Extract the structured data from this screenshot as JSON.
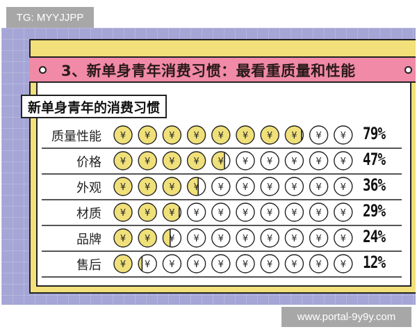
{
  "watermarks": {
    "top": "TG: MYYJJPP",
    "bottom": "www.portal-9y9y.com"
  },
  "banner": {
    "title": "3、新单身青年消费习惯：最看重质量和性能"
  },
  "subtitle": "新单身青年的消费习惯",
  "colors": {
    "coin_fill": "#f0e07a",
    "banner": "#f08aa6",
    "frame": "#f2e07a",
    "background": "#a5a6d6"
  },
  "coin_icon": "yen-coin-icon",
  "chart_data": {
    "type": "pictogram",
    "title": "新单身青年的消费习惯",
    "categories": [
      "质量性能",
      "价格",
      "外观",
      "材质",
      "品牌",
      "售后"
    ],
    "values": [
      79,
      47,
      36,
      29,
      24,
      12
    ],
    "labels": [
      "79%",
      "47%",
      "36%",
      "29%",
      "24%",
      "12%"
    ],
    "unit": "%",
    "icons_per_row": 10
  }
}
